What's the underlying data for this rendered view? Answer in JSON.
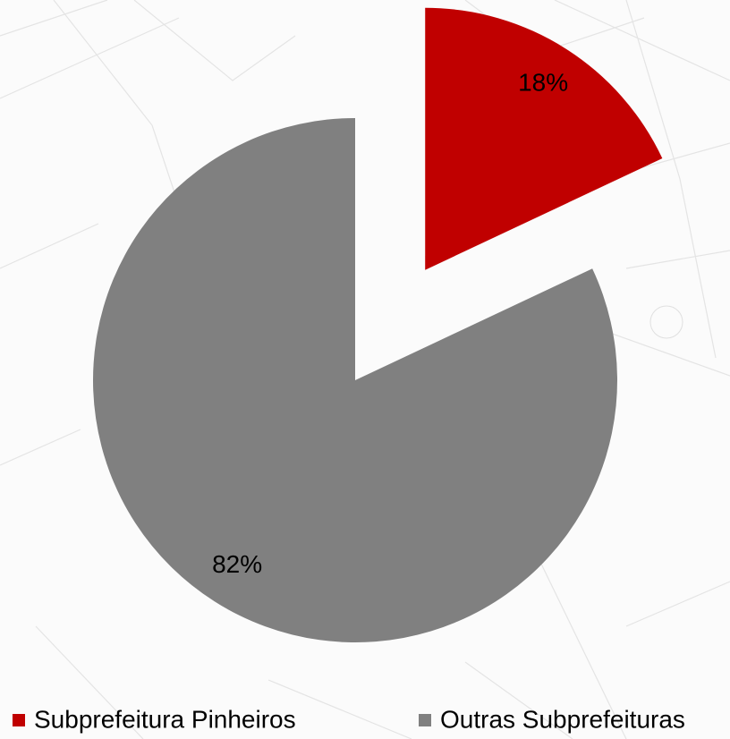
{
  "chart_data": {
    "type": "pie",
    "categories": [
      "Subprefeitura Pinheiros",
      "Outras Subprefeituras"
    ],
    "values": [
      18,
      82
    ],
    "value_labels": [
      "18%",
      "82%"
    ],
    "colors": [
      "#c00000",
      "#808080"
    ],
    "explode": [
      true,
      false
    ],
    "legend": "bottom"
  }
}
